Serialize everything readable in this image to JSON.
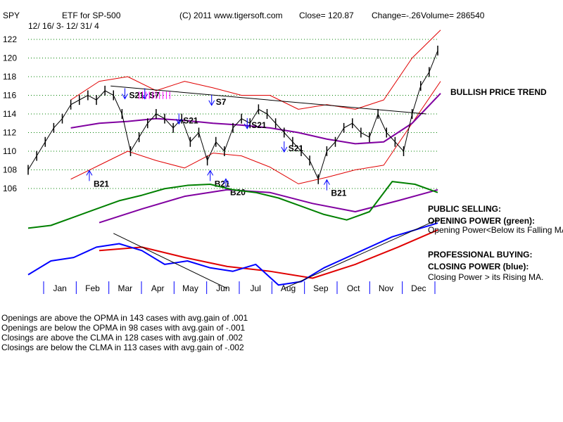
{
  "header": {
    "symbol": "SPY",
    "name": "ETF for SP-500",
    "copyright": "(C) 2011 www.tigersoft.com",
    "close": "Close=  120.87",
    "change": "Change=-.26",
    "volume": "Volume=  286540",
    "date_range": "12/ 16/ 3-  12/ 31/ 4"
  },
  "annotations": {
    "trend": "BULLISH PRICE TREND",
    "public_title": "PUBLIC SELLING:",
    "public_sub": "OPENING POWER (green):",
    "public_desc": "Opening Power<Below its Falling MA.",
    "pro_title": "PROFESSIONAL BUYING:",
    "pro_sub": "CLOSING POWER (blue):",
    "pro_desc": "Closing Power > its Rising MA."
  },
  "signals": [
    {
      "label": "B21",
      "kind": "buy",
      "x": 2.25,
      "price": 106.5
    },
    {
      "label": "B21",
      "kind": "buy",
      "x": 6.5,
      "price": 106.5
    },
    {
      "label": "B21",
      "kind": "buy",
      "x": 10.6,
      "price": 105.5
    },
    {
      "label": "S21",
      "kind": "sell",
      "x": 3.5,
      "price": 116
    },
    {
      "label": "S7",
      "kind": "sell",
      "x": 4.2,
      "price": 116
    },
    {
      "label": "S21",
      "kind": "sell",
      "x": 5.4,
      "price": 113.3
    },
    {
      "label": "S7",
      "kind": "sell",
      "x": 6.55,
      "price": 115.3
    },
    {
      "label": "S21",
      "kind": "sell",
      "x": 7.8,
      "price": 112.8
    },
    {
      "label": "S21",
      "kind": "sell",
      "x": 9.1,
      "price": 110.3
    },
    {
      "label": "B20",
      "kind": "buy",
      "x": 7.05,
      "price": 105.6
    }
  ],
  "stats": [
    "Openings are above the OPMA in  143 cases with avg.gain of  .001",
    "Openings are below the OPMA in  98 cases with avg.gain of -.001",
    "Closings are above the CLMA in  128 cases with avg.gain of  .002",
    "Closings are below the CLMA in  113 cases with avg.gain of -.002"
  ],
  "chart_data": {
    "type": "line",
    "title": "SPY  ETF for SP-500",
    "xlabel": "",
    "ylabel": "",
    "ylim": [
      106,
      122
    ],
    "y_ticks": [
      106,
      108,
      110,
      112,
      114,
      116,
      118,
      120,
      122
    ],
    "x_months": [
      "Jan",
      "Feb",
      "Mar",
      "Apr",
      "May",
      "Jun",
      "Jul",
      "Aug",
      "Sep",
      "Oct",
      "Nov",
      "Dec"
    ],
    "grid": true,
    "legend": "none",
    "colors": {
      "price": "#000000",
      "band": "#e00000",
      "ma": "#8000a0",
      "opening_power": "#008000",
      "closing_power": "#0000ff",
      "closing_ma": "#e00000",
      "grid": "#008000",
      "signal_buy": "#0000ff",
      "signal_sell": "#0000ff",
      "pink_signal": "#ff00ff"
    },
    "series": [
      {
        "key": "price",
        "x": [
          0,
          0.3,
          0.6,
          0.9,
          1.2,
          1.5,
          1.8,
          2.1,
          2.4,
          2.7,
          3.0,
          3.3,
          3.6,
          3.9,
          4.2,
          4.5,
          4.8,
          5.1,
          5.4,
          5.7,
          6.0,
          6.3,
          6.6,
          6.9,
          7.2,
          7.5,
          7.8,
          8.1,
          8.4,
          8.7,
          9.0,
          9.3,
          9.6,
          9.9,
          10.2,
          10.5,
          10.8,
          11.1,
          11.4,
          11.7,
          12.0,
          12.3,
          12.6,
          12.9,
          13.2,
          13.5,
          13.8,
          14.1,
          14.4
        ],
        "values": [
          108,
          109.5,
          111,
          112.5,
          113.5,
          115,
          115.5,
          116,
          115.5,
          116.5,
          116,
          114,
          110,
          111.5,
          113,
          114,
          113.5,
          112.5,
          113.5,
          111,
          112,
          109,
          111,
          110,
          112.5,
          113.5,
          113,
          114.5,
          114,
          113,
          112,
          111,
          110,
          109,
          107,
          110,
          111,
          112.5,
          113,
          112,
          111.5,
          114,
          112,
          111,
          110,
          114,
          117,
          118.5,
          120.8
        ]
      },
      {
        "key": "ma",
        "x": [
          1.5,
          2.5,
          3.5,
          4.5,
          5.5,
          6.5,
          7.5,
          8.5,
          9.5,
          10.5,
          11.5,
          12.5,
          13.5,
          14.5
        ],
        "values": [
          112.5,
          113,
          113.2,
          113.5,
          113.3,
          113,
          112.8,
          112.5,
          112,
          111.3,
          110.8,
          111,
          113,
          116.2
        ]
      },
      {
        "key": "upper_band",
        "x": [
          1.5,
          2.5,
          3.5,
          4.5,
          5.5,
          6.5,
          7.5,
          8.5,
          9.5,
          10.5,
          11.5,
          12.5,
          13.5,
          14.5
        ],
        "values": [
          115.5,
          117.5,
          118,
          116.5,
          117.5,
          116.8,
          116,
          116,
          114.5,
          115,
          114.5,
          115.5,
          120,
          123
        ]
      },
      {
        "key": "lower_band",
        "x": [
          1.5,
          2.5,
          3.5,
          4.5,
          5.5,
          6.5,
          7.5,
          8.5,
          9.5,
          10.5,
          11.5,
          12.5,
          13.5,
          14.5
        ],
        "values": [
          107,
          108.5,
          110,
          109,
          108.2,
          109.8,
          109.5,
          108.3,
          106.5,
          107.2,
          108,
          108.5,
          113,
          117.5
        ]
      },
      {
        "key": "opening_power",
        "x": [
          0,
          0.8,
          1.6,
          2.4,
          3.2,
          4.0,
          4.8,
          5.6,
          6.4,
          7.2,
          8.0,
          8.8,
          9.6,
          10.4,
          11.2,
          12.0,
          12.8,
          13.6,
          14.4
        ],
        "values": [
          0.2,
          0.25,
          0.4,
          0.55,
          0.7,
          0.8,
          0.92,
          0.98,
          1.0,
          0.9,
          0.85,
          0.75,
          0.6,
          0.45,
          0.35,
          0.5,
          1.05,
          1.0,
          0.85
        ]
      },
      {
        "key": "opening_ma",
        "x": [
          2.5,
          4.0,
          5.5,
          7.0,
          8.5,
          10.0,
          11.5,
          13.0,
          14.4
        ],
        "values": [
          0.3,
          0.55,
          0.78,
          0.9,
          0.85,
          0.65,
          0.5,
          0.7,
          0.9
        ]
      },
      {
        "key": "closing_power",
        "x": [
          0,
          0.8,
          1.6,
          2.4,
          3.2,
          4.0,
          4.8,
          5.6,
          6.4,
          7.2,
          8.0,
          8.8,
          9.6,
          10.4,
          11.2,
          12.0,
          12.8,
          13.6,
          14.4
        ],
        "values": [
          0.3,
          0.5,
          0.55,
          0.7,
          0.75,
          0.65,
          0.45,
          0.5,
          0.4,
          0.35,
          0.45,
          0.15,
          0.2,
          0.4,
          0.55,
          0.7,
          0.85,
          0.95,
          1.05
        ]
      },
      {
        "key": "closing_ma",
        "x": [
          2.5,
          4.0,
          5.5,
          7.0,
          8.5,
          10.0,
          11.5,
          13.0,
          14.4
        ],
        "values": [
          0.65,
          0.7,
          0.55,
          0.42,
          0.35,
          0.25,
          0.45,
          0.7,
          0.95
        ]
      }
    ]
  }
}
